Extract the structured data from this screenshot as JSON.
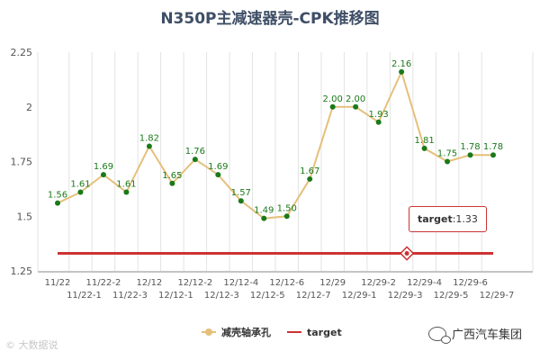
{
  "chart_data": {
    "type": "line",
    "title": "N350P主减速器壳-CPK推移图",
    "categories": [
      "11/22",
      "11/22-1",
      "11/22-2",
      "11/22-3",
      "12/12",
      "12/12-1",
      "12/12-2",
      "12/12-3",
      "12/12-4",
      "12/12-5",
      "12/12-6",
      "12/12-7",
      "12/29",
      "12/29-1",
      "12/29-2",
      "12/29-3",
      "12/29-4",
      "12/29-5",
      "12/29-6",
      "12/29-7"
    ],
    "series": [
      {
        "name": "减壳轴承孔",
        "color": "#e5c07b",
        "marker_color": "#1a7a1a",
        "values": [
          1.56,
          1.61,
          1.69,
          1.61,
          1.82,
          1.65,
          1.76,
          1.69,
          1.57,
          1.49,
          1.5,
          1.67,
          2.0,
          2.0,
          1.93,
          2.16,
          1.81,
          1.75,
          1.78,
          1.78
        ],
        "labels": [
          "1.56",
          "1.61",
          "1.69",
          "1.61",
          "1.82",
          "1.65",
          "1.76",
          "1.69",
          "1.57",
          "1.49",
          "1.50",
          "1.67",
          "2.00",
          "2.00",
          "1.93",
          "2.16",
          "1.81",
          "1.75",
          "1.78",
          "1.78"
        ]
      },
      {
        "name": "target",
        "color": "#cc3333",
        "values": [
          1.33,
          1.33,
          1.33,
          1.33,
          1.33,
          1.33,
          1.33,
          1.33,
          1.33,
          1.33,
          1.33,
          1.33,
          1.33,
          1.33,
          1.33,
          1.33,
          1.33,
          1.33,
          1.33,
          1.33
        ]
      }
    ],
    "ylim": [
      1.25,
      2.25
    ],
    "yticks": [
      "1.25",
      "1.5",
      "1.75",
      "2",
      "2.25"
    ],
    "xlabel": "",
    "ylabel": "",
    "grid": "vertical",
    "legend": "bottom-center"
  },
  "tooltip": {
    "series": "target",
    "value": "1.33"
  },
  "watermark_left": "© 大数据说",
  "watermark_right": "广西汽车集团"
}
